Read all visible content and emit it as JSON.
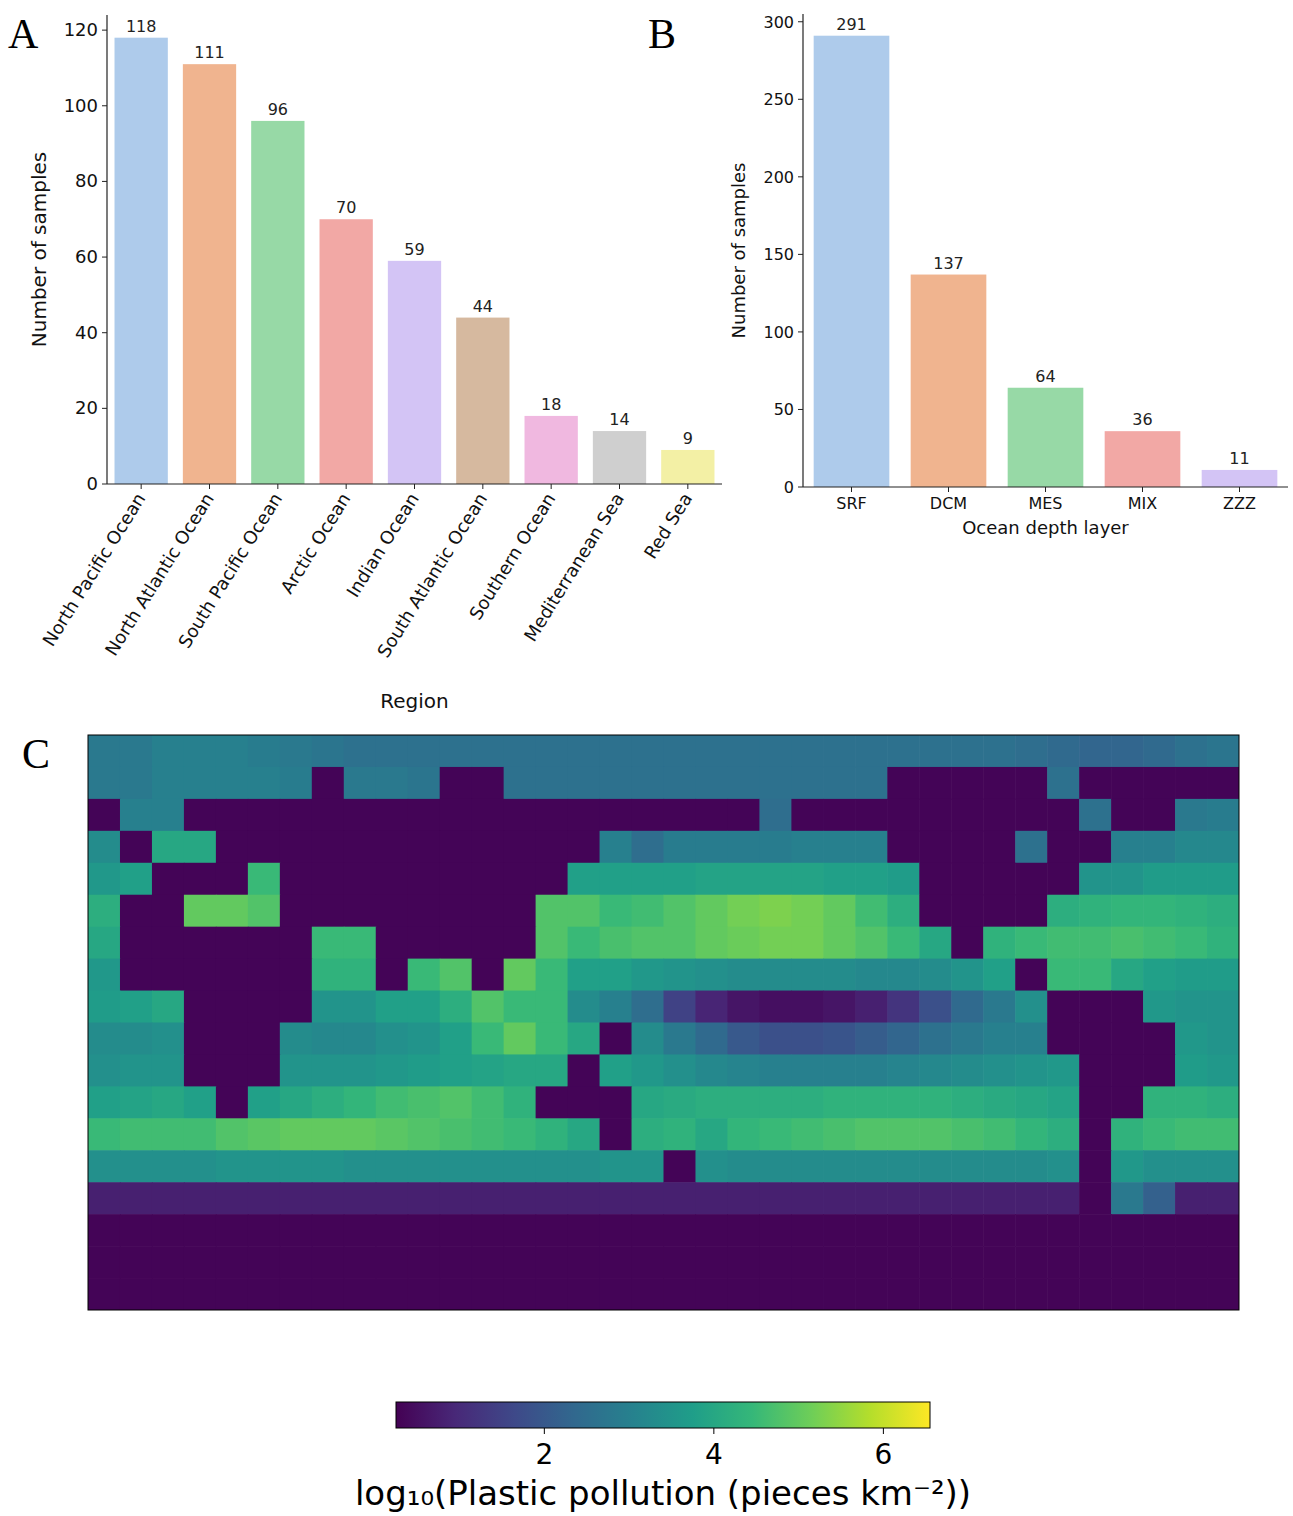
{
  "chart_data": [
    {
      "type": "bar",
      "panel_label": "A",
      "x_label": "Region",
      "y_label": "Number of samples",
      "categories": [
        "North Pacific Ocean",
        "North Atlantic Ocean",
        "South Pacific Ocean",
        "Arctic Ocean",
        "Indian Ocean",
        "South Atlantic Ocean",
        "Southern Ocean",
        "Mediterranean Sea",
        "Red Sea"
      ],
      "values": [
        118,
        111,
        96,
        70,
        59,
        44,
        18,
        14,
        9
      ],
      "colors": [
        "#aecbeb",
        "#f0b48f",
        "#97d9a6",
        "#f2a8a5",
        "#d3c4f5",
        "#d6b99f",
        "#f0b8e0",
        "#cfcfcf",
        "#f3f0a5"
      ],
      "ylim": [
        0,
        124
      ],
      "yticks": [
        0,
        20,
        40,
        60,
        80,
        100,
        120
      ],
      "data_labels": true
    },
    {
      "type": "bar",
      "panel_label": "B",
      "x_label": "Ocean depth layer",
      "y_label": "Number of samples",
      "categories": [
        "SRF",
        "DCM",
        "MES",
        "MIX",
        "ZZZ"
      ],
      "values": [
        291,
        137,
        64,
        36,
        11
      ],
      "colors": [
        "#aecbeb",
        "#f0b48f",
        "#97d9a6",
        "#f2a8a5",
        "#d3c4f5"
      ],
      "ylim": [
        0,
        305
      ],
      "yticks": [
        0,
        50,
        100,
        150,
        200,
        250,
        300
      ],
      "data_labels": true
    },
    {
      "type": "heatmap",
      "panel_label": "C",
      "tick_labels": false,
      "xlim": [
        -20,
        340
      ],
      "ylim": [
        -90,
        90
      ],
      "x": [
        -15,
        -5,
        5,
        15,
        25,
        35,
        45,
        55,
        65,
        75,
        85,
        95,
        105,
        115,
        125,
        135,
        145,
        155,
        165,
        175,
        185,
        195,
        205,
        215,
        225,
        235,
        245,
        255,
        265,
        275,
        285,
        295,
        305,
        315,
        325,
        335
      ],
      "y": [
        85,
        75,
        65,
        55,
        45,
        35,
        25,
        15,
        5,
        -5,
        -15,
        -25,
        -35,
        -45,
        -55,
        -65,
        -75,
        -85
      ],
      "values": [
        [
          2.8,
          2.8,
          3.0,
          3.0,
          3.0,
          2.9,
          2.8,
          2.7,
          2.6,
          2.6,
          2.6,
          2.6,
          2.6,
          2.6,
          2.6,
          2.6,
          2.6,
          2.6,
          2.6,
          2.6,
          2.6,
          2.6,
          2.6,
          2.6,
          2.6,
          2.6,
          2.6,
          2.6,
          2.6,
          2.5,
          2.4,
          2.3,
          2.3,
          2.4,
          2.6,
          2.7
        ],
        [
          2.8,
          2.8,
          3.0,
          3.0,
          3.0,
          3.0,
          2.9,
          0.3,
          2.8,
          2.8,
          2.7,
          0.3,
          0.3,
          2.6,
          2.6,
          2.6,
          2.6,
          2.6,
          2.6,
          2.6,
          2.6,
          2.6,
          2.6,
          2.6,
          2.6,
          0.3,
          0.3,
          0.3,
          0.3,
          0.3,
          2.6,
          0.3,
          0.3,
          0.3,
          0.3,
          0.3
        ],
        [
          0.3,
          3.0,
          3.0,
          0.3,
          0.3,
          0.3,
          0.3,
          0.3,
          0.3,
          0.3,
          0.3,
          0.3,
          0.3,
          0.3,
          0.3,
          0.3,
          0.3,
          0.3,
          0.3,
          0.3,
          0.3,
          2.5,
          0.3,
          0.3,
          0.3,
          0.3,
          0.3,
          0.3,
          0.3,
          0.3,
          0.3,
          2.6,
          0.3,
          0.3,
          2.8,
          2.9
        ],
        [
          3.3,
          0.3,
          4.0,
          4.0,
          0.3,
          0.3,
          0.3,
          0.3,
          0.3,
          0.3,
          0.3,
          0.3,
          0.3,
          0.3,
          0.3,
          0.3,
          3.0,
          2.5,
          2.9,
          2.9,
          2.9,
          2.9,
          3.0,
          3.0,
          3.0,
          0.3,
          0.3,
          0.3,
          0.3,
          2.6,
          0.3,
          0.3,
          3.0,
          3.0,
          3.2,
          3.2
        ],
        [
          3.6,
          3.8,
          0.3,
          0.3,
          0.3,
          4.5,
          0.3,
          0.3,
          0.3,
          0.3,
          0.3,
          0.3,
          0.3,
          0.3,
          0.3,
          3.8,
          3.8,
          3.8,
          3.8,
          3.9,
          3.9,
          3.9,
          3.9,
          3.8,
          3.8,
          3.7,
          0.3,
          0.3,
          0.3,
          0.3,
          0.3,
          3.5,
          3.5,
          3.7,
          3.7,
          3.7
        ],
        [
          4.2,
          0.3,
          0.3,
          5.0,
          5.0,
          4.8,
          0.3,
          0.3,
          0.3,
          0.3,
          0.3,
          0.3,
          0.3,
          0.3,
          4.8,
          4.8,
          4.5,
          4.6,
          4.8,
          5.0,
          5.2,
          5.3,
          5.2,
          5.0,
          4.6,
          4.2,
          0.3,
          0.3,
          0.3,
          0.3,
          4.2,
          4.3,
          4.4,
          4.4,
          4.3,
          4.2
        ],
        [
          4.0,
          0.3,
          0.3,
          0.3,
          0.3,
          0.3,
          0.3,
          4.5,
          4.5,
          0.3,
          0.3,
          0.3,
          0.3,
          0.3,
          4.8,
          4.5,
          4.7,
          4.8,
          4.8,
          5.0,
          5.1,
          5.2,
          5.2,
          5.0,
          4.8,
          4.5,
          4.0,
          0.3,
          4.3,
          4.5,
          4.6,
          4.6,
          4.7,
          4.6,
          4.5,
          4.3
        ],
        [
          3.6,
          0.3,
          0.3,
          0.3,
          0.3,
          0.3,
          0.3,
          4.3,
          4.3,
          0.3,
          4.5,
          4.8,
          0.3,
          5.0,
          4.5,
          3.8,
          3.8,
          3.6,
          3.5,
          3.4,
          3.3,
          3.3,
          3.3,
          3.3,
          3.2,
          3.2,
          3.3,
          3.5,
          3.8,
          0.3,
          4.5,
          4.5,
          4.0,
          3.8,
          3.7,
          3.7
        ],
        [
          3.7,
          3.8,
          4.0,
          0.3,
          0.3,
          0.3,
          0.3,
          3.5,
          3.5,
          3.8,
          3.8,
          4.2,
          4.8,
          4.5,
          4.5,
          3.3,
          3.0,
          2.5,
          1.5,
          0.9,
          0.6,
          0.5,
          0.5,
          0.6,
          0.8,
          1.2,
          1.8,
          2.4,
          2.8,
          3.4,
          0.3,
          0.3,
          0.3,
          3.6,
          3.5,
          3.5
        ],
        [
          3.3,
          3.3,
          3.4,
          0.3,
          0.3,
          0.3,
          3.3,
          3.2,
          3.2,
          3.4,
          3.5,
          3.8,
          4.5,
          5.0,
          4.5,
          4.0,
          0.3,
          3.3,
          2.8,
          2.4,
          2.0,
          1.8,
          1.8,
          1.9,
          2.1,
          2.3,
          2.6,
          2.8,
          3.0,
          3.0,
          0.3,
          0.3,
          0.3,
          0.3,
          3.6,
          3.5
        ],
        [
          3.4,
          3.5,
          3.5,
          0.3,
          0.3,
          0.3,
          3.5,
          3.5,
          3.5,
          3.6,
          3.7,
          3.8,
          3.9,
          4.0,
          4.0,
          0.3,
          3.8,
          3.6,
          3.4,
          3.2,
          3.1,
          3.0,
          3.0,
          3.0,
          3.0,
          3.1,
          3.2,
          3.3,
          3.4,
          3.5,
          3.6,
          0.3,
          0.3,
          0.3,
          3.7,
          3.6
        ],
        [
          3.8,
          3.9,
          4.0,
          3.8,
          0.3,
          3.8,
          4.0,
          4.2,
          4.4,
          4.6,
          4.7,
          4.8,
          4.6,
          4.3,
          0.3,
          0.3,
          0.3,
          4.0,
          4.1,
          4.2,
          4.2,
          4.2,
          4.2,
          4.3,
          4.3,
          4.3,
          4.3,
          4.2,
          4.1,
          4.0,
          3.9,
          0.3,
          0.3,
          4.3,
          4.3,
          4.2
        ],
        [
          4.5,
          4.6,
          4.6,
          4.6,
          4.8,
          4.9,
          5.0,
          5.0,
          5.0,
          4.9,
          4.8,
          4.7,
          4.6,
          4.5,
          4.3,
          4.0,
          0.3,
          4.2,
          4.3,
          4.0,
          4.4,
          4.5,
          4.6,
          4.7,
          4.8,
          4.8,
          4.8,
          4.7,
          4.6,
          4.4,
          4.2,
          0.3,
          4.3,
          4.5,
          4.6,
          4.6
        ],
        [
          3.4,
          3.4,
          3.4,
          3.4,
          3.5,
          3.5,
          3.5,
          3.5,
          3.4,
          3.4,
          3.4,
          3.4,
          3.4,
          3.4,
          3.4,
          3.4,
          3.5,
          3.5,
          0.3,
          3.4,
          3.3,
          3.3,
          3.3,
          3.3,
          3.3,
          3.3,
          3.3,
          3.3,
          3.3,
          3.3,
          3.4,
          0.3,
          3.6,
          3.4,
          3.4,
          3.4
        ],
        [
          0.8,
          0.8,
          0.8,
          0.8,
          0.8,
          0.8,
          0.8,
          0.8,
          0.8,
          0.8,
          0.8,
          0.8,
          0.8,
          0.8,
          0.8,
          0.8,
          0.8,
          0.8,
          0.8,
          0.8,
          0.8,
          0.8,
          0.8,
          0.8,
          0.8,
          0.8,
          0.8,
          0.8,
          0.8,
          0.8,
          0.8,
          0.3,
          2.8,
          2.2,
          0.8,
          0.8
        ],
        [
          0.3,
          0.3,
          0.3,
          0.3,
          0.3,
          0.3,
          0.3,
          0.3,
          0.3,
          0.3,
          0.3,
          0.3,
          0.3,
          0.3,
          0.3,
          0.3,
          0.3,
          0.3,
          0.3,
          0.3,
          0.3,
          0.3,
          0.3,
          0.3,
          0.3,
          0.3,
          0.3,
          0.3,
          0.3,
          0.3,
          0.3,
          0.3,
          0.3,
          0.3,
          0.3,
          0.3
        ],
        [
          0.3,
          0.3,
          0.3,
          0.3,
          0.3,
          0.3,
          0.3,
          0.3,
          0.3,
          0.3,
          0.3,
          0.3,
          0.3,
          0.3,
          0.3,
          0.3,
          0.3,
          0.3,
          0.3,
          0.3,
          0.3,
          0.3,
          0.3,
          0.3,
          0.3,
          0.3,
          0.3,
          0.3,
          0.3,
          0.3,
          0.3,
          0.3,
          0.3,
          0.3,
          0.3,
          0.3
        ],
        [
          0.3,
          0.3,
          0.3,
          0.3,
          0.3,
          0.3,
          0.3,
          0.3,
          0.3,
          0.3,
          0.3,
          0.3,
          0.3,
          0.3,
          0.3,
          0.3,
          0.3,
          0.3,
          0.3,
          0.3,
          0.3,
          0.3,
          0.3,
          0.3,
          0.3,
          0.3,
          0.3,
          0.3,
          0.3,
          0.3,
          0.3,
          0.3,
          0.3,
          0.3,
          0.3,
          0.3
        ]
      ],
      "colorbar_range": [
        0.25,
        6.55
      ],
      "colorbar_ticks": [
        2,
        4,
        6
      ],
      "colorbar_label": "log₁₀(Plastic pollution (pieces km⁻²))"
    }
  ]
}
